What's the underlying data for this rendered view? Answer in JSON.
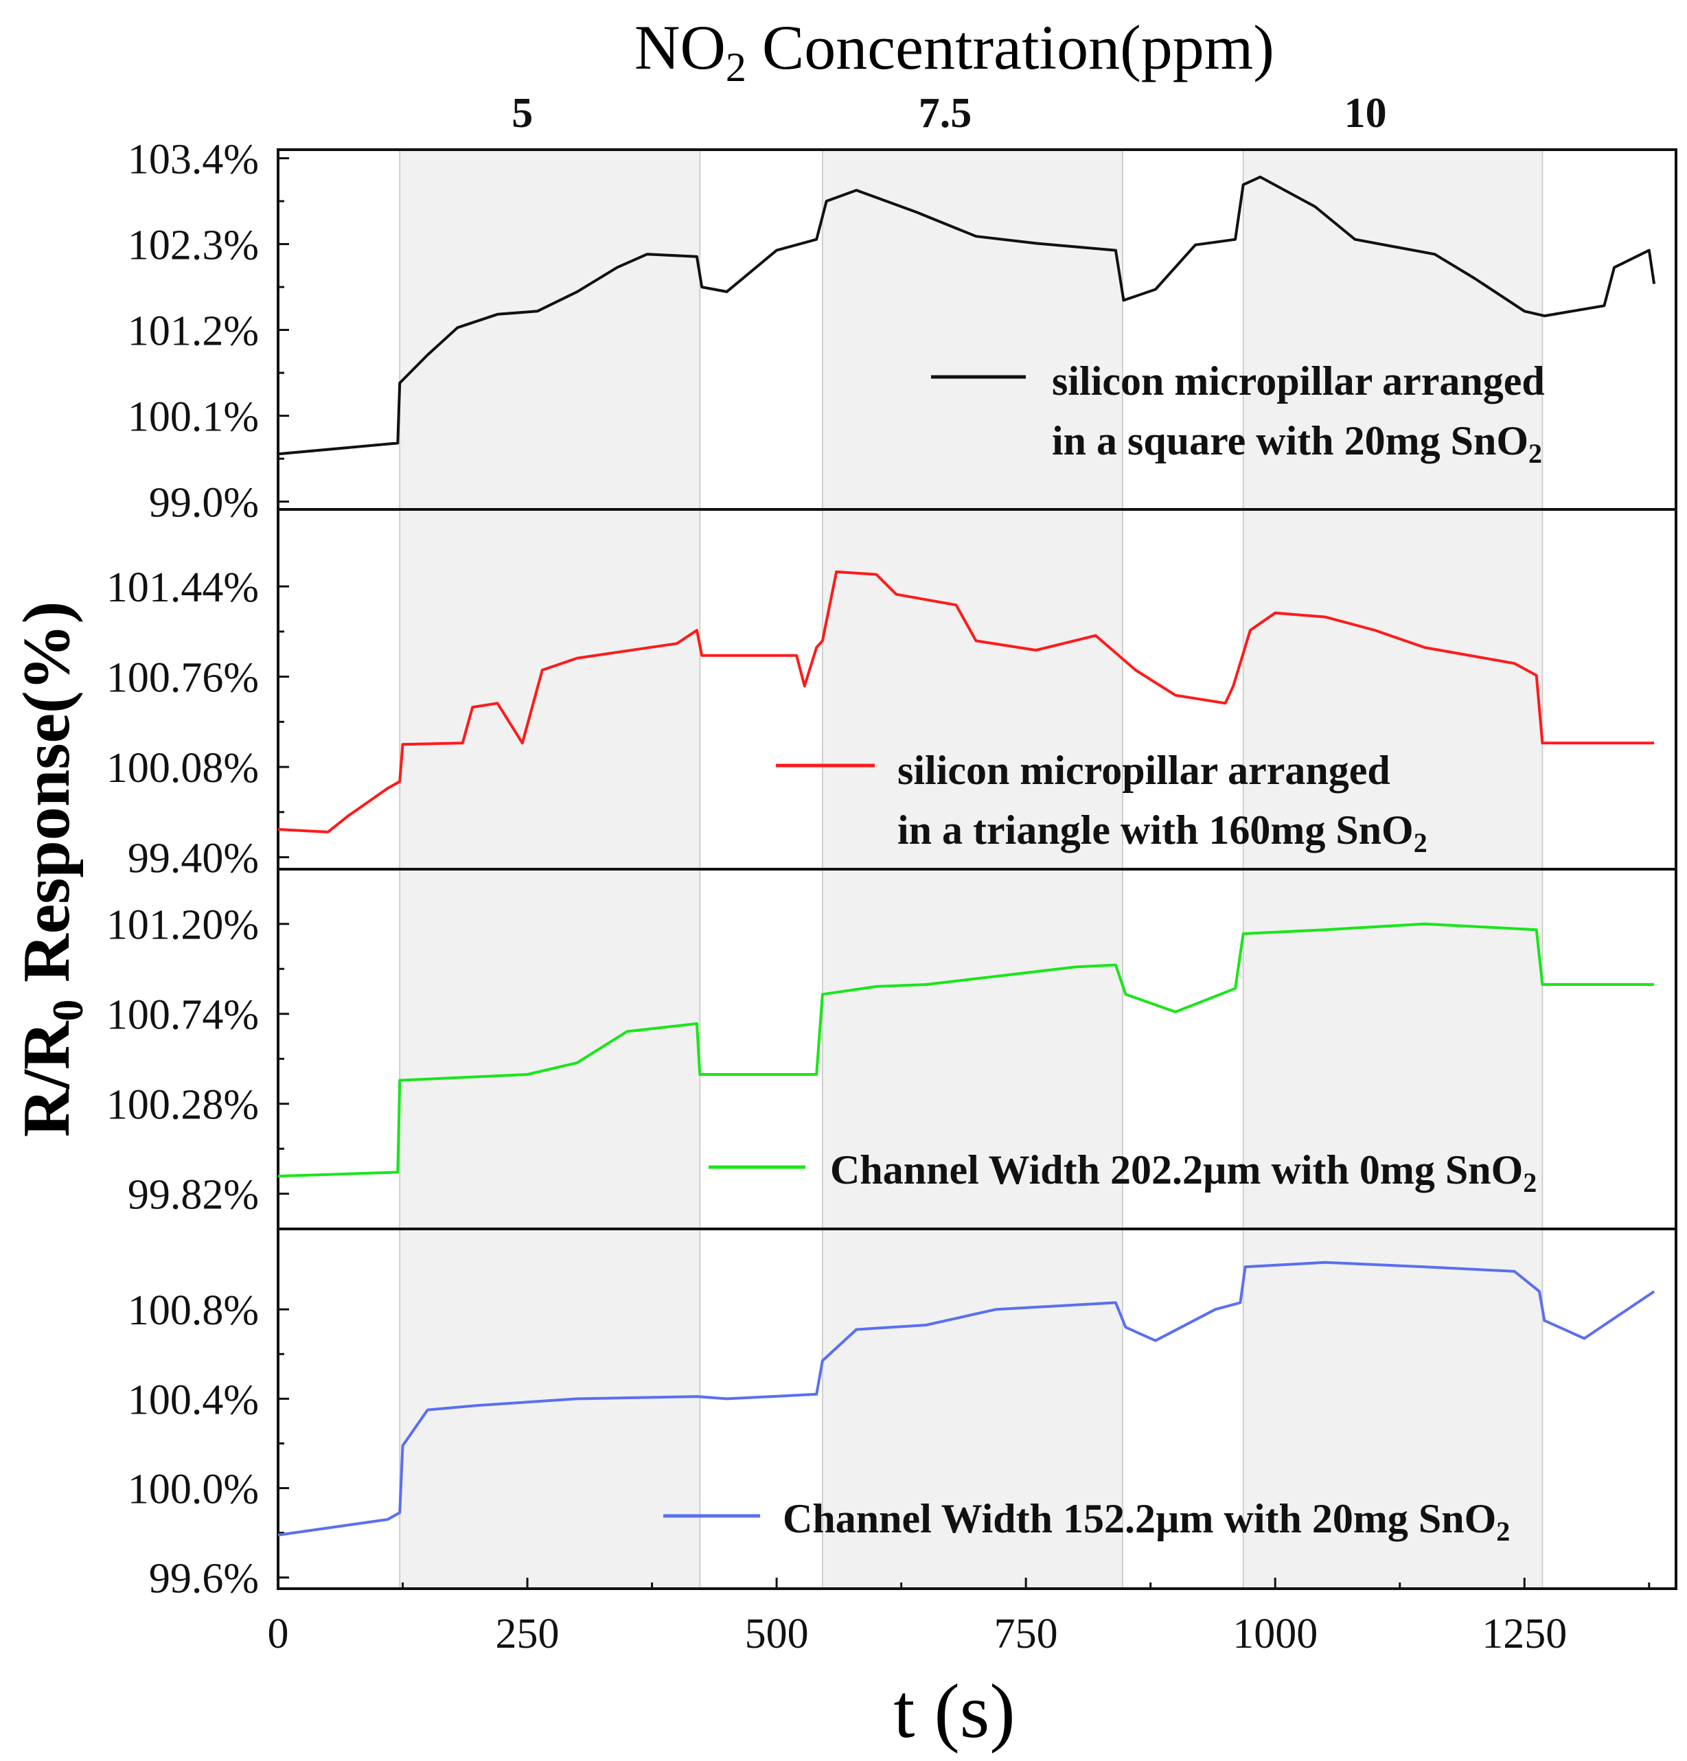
{
  "chart_data": {
    "type": "line",
    "title": "NO2 Concentration(ppm)",
    "title_parts": {
      "pre": "NO",
      "sub": "2",
      "post": " Concentration(ppm)"
    },
    "xlabel": "t (s)",
    "ylabel": "R/R0 Response(%)",
    "ylabel_parts": {
      "pre": "R/R",
      "sub": "0",
      "post": " Response(%)"
    },
    "xlim": [
      0,
      1402
    ],
    "xticks": [
      0,
      250,
      500,
      750,
      1000,
      1250
    ],
    "xtick_labels": [
      "0",
      "250",
      "500",
      "750",
      "1000",
      "1250"
    ],
    "exposure_intervals": [
      [
        122,
        423
      ],
      [
        546,
        847
      ],
      [
        968,
        1268
      ]
    ],
    "concentration_labels": [
      "5",
      "7.5",
      "10"
    ],
    "panels": [
      {
        "name": "silicon micropillar arranged in a square with 20mg SnO2",
        "legend_lines": [
          "silicon micropillar arranged",
          "in a square with 20mg SnO",
          "2"
        ],
        "color": "#111111",
        "ylim": [
          98.9,
          103.51
        ],
        "yticks": [
          99.0,
          100.1,
          101.2,
          102.3,
          103.4
        ],
        "ytick_labels": [
          "99.0%",
          "100.1%",
          "101.2%",
          "102.3%",
          "103.4%"
        ],
        "t": [
          0,
          120,
          122,
          150,
          180,
          220,
          260,
          300,
          340,
          370,
          420,
          425,
          450,
          500,
          540,
          550,
          580,
          640,
          700,
          760,
          840,
          848,
          880,
          920,
          960,
          968,
          985,
          1040,
          1080,
          1160,
          1200,
          1250,
          1270,
          1330,
          1340,
          1375,
          1380
        ],
        "values": [
          99.61,
          99.75,
          100.52,
          100.88,
          101.23,
          101.4,
          101.44,
          101.69,
          102.0,
          102.17,
          102.14,
          101.75,
          101.69,
          102.22,
          102.36,
          102.85,
          102.99,
          102.71,
          102.4,
          102.31,
          102.22,
          101.58,
          101.72,
          102.29,
          102.36,
          103.06,
          103.16,
          102.78,
          102.36,
          102.17,
          101.86,
          101.44,
          101.38,
          101.51,
          102.0,
          102.22,
          101.79
        ]
      },
      {
        "name": "silicon micropillar arranged in a triangle with 160mg SnO2",
        "legend_lines": [
          "silicon micropillar arranged",
          "in a triangle with 160mg SnO",
          "2"
        ],
        "color": "#ff1a1a",
        "ylim": [
          99.31,
          102.02
        ],
        "yticks": [
          99.4,
          100.08,
          100.76,
          101.44
        ],
        "ytick_labels": [
          "99.40%",
          "100.08%",
          "100.76%",
          "101.44%"
        ],
        "t": [
          0,
          50,
          70,
          110,
          122,
          125,
          185,
          195,
          220,
          245,
          265,
          300,
          400,
          420,
          425,
          520,
          528,
          540,
          546,
          560,
          600,
          620,
          680,
          700,
          760,
          820,
          860,
          900,
          950,
          958,
          975,
          1000,
          1050,
          1100,
          1150,
          1240,
          1262,
          1268,
          1380
        ],
        "values": [
          99.61,
          99.59,
          99.71,
          99.92,
          99.97,
          100.25,
          100.26,
          100.53,
          100.56,
          100.26,
          100.81,
          100.9,
          101.01,
          101.11,
          100.92,
          100.92,
          100.69,
          100.98,
          101.03,
          101.55,
          101.53,
          101.38,
          101.3,
          101.03,
          100.96,
          101.07,
          100.81,
          100.62,
          100.56,
          100.69,
          101.11,
          101.24,
          101.21,
          101.11,
          100.98,
          100.86,
          100.77,
          100.26,
          100.26
        ]
      },
      {
        "name": "Channel Width 202.2µm with 0mg SnO2",
        "legend_lines": [
          "Channel Width 202.2µm with 0mg SnO",
          "2"
        ],
        "color": "#19e619",
        "ylim": [
          99.64,
          101.48
        ],
        "yticks": [
          99.82,
          100.28,
          100.74,
          101.2
        ],
        "ytick_labels": [
          "99.82%",
          "100.28%",
          "100.74%",
          "101.20%"
        ],
        "t": [
          0,
          120,
          122,
          250,
          300,
          350,
          420,
          423,
          540,
          546,
          600,
          650,
          700,
          800,
          840,
          850,
          900,
          960,
          968,
          1050,
          1150,
          1262,
          1268,
          1380
        ],
        "values": [
          99.91,
          99.93,
          100.4,
          100.43,
          100.49,
          100.65,
          100.69,
          100.43,
          100.43,
          100.84,
          100.88,
          100.89,
          100.92,
          100.98,
          100.99,
          100.84,
          100.75,
          100.87,
          101.15,
          101.17,
          101.2,
          101.17,
          100.89,
          100.89
        ]
      },
      {
        "name": "Channel Width 152.2µm with 20mg SnO2",
        "legend_lines": [
          "Channel Width 152.2µm with 20mg SnO",
          "2"
        ],
        "color": "#5a6ff0",
        "ylim": [
          99.55,
          101.16
        ],
        "yticks": [
          99.6,
          100.0,
          100.4,
          100.8
        ],
        "ytick_labels": [
          "99.6%",
          "100.0%",
          "100.4%",
          "100.8%"
        ],
        "t": [
          0,
          110,
          122,
          125,
          150,
          200,
          300,
          420,
          450,
          540,
          546,
          580,
          650,
          720,
          840,
          850,
          880,
          940,
          965,
          970,
          1050,
          1150,
          1240,
          1265,
          1270,
          1310,
          1380
        ],
        "values": [
          99.79,
          99.86,
          99.89,
          100.19,
          100.35,
          100.37,
          100.4,
          100.41,
          100.4,
          100.42,
          100.57,
          100.71,
          100.73,
          100.8,
          100.83,
          100.72,
          100.66,
          100.8,
          100.83,
          100.99,
          101.01,
          100.99,
          100.97,
          100.88,
          100.75,
          100.67,
          100.88
        ]
      }
    ]
  }
}
